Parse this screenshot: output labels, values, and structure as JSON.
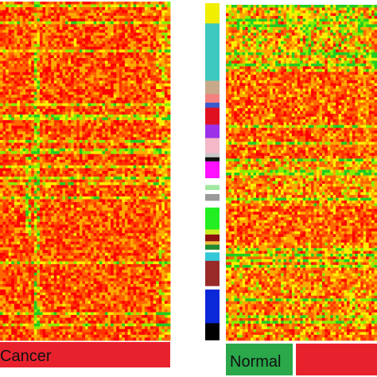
{
  "chart_data": [
    {
      "type": "heatmap",
      "name": "left-heatmap",
      "colormap": [
        "#ff0000",
        "#ff3300",
        "#ff6600",
        "#ffaa00",
        "#ffee00",
        "#88ee00",
        "#22cc22"
      ],
      "column_groups": [
        {
          "label": "Cancer",
          "color": "#e8222d"
        }
      ]
    },
    {
      "type": "heatmap",
      "name": "right-heatmap",
      "colormap": [
        "#ff0000",
        "#ff3300",
        "#ff6600",
        "#ffaa00",
        "#ffee00",
        "#88ee00",
        "#22cc22"
      ],
      "column_groups": [
        {
          "label": "Normal",
          "color": "#2aa84a"
        },
        {
          "label": "",
          "color": "#e8222d"
        }
      ]
    }
  ],
  "row_clusters": [
    {
      "color": "#f2ee00",
      "fraction": 0.06
    },
    {
      "color": "#3ec9c0",
      "fraction": 0.17
    },
    {
      "color": "#c8a98a",
      "fraction": 0.04
    },
    {
      "color": "#f48080",
      "fraction": 0.025
    },
    {
      "color": "#3b5bd0",
      "fraction": 0.015
    },
    {
      "color": "#e01020",
      "fraction": 0.05
    },
    {
      "color": "#9b30e8",
      "fraction": 0.04
    },
    {
      "color": "#f5b8c8",
      "fraction": 0.045
    },
    {
      "color": "#c8c8c8",
      "fraction": 0.012
    },
    {
      "color": "#101010",
      "fraction": 0.012
    },
    {
      "color": "#ff10ff",
      "fraction": 0.05
    },
    {
      "color": "#ffffff",
      "fraction": 0.02
    },
    {
      "color": "#a0e8a0",
      "fraction": 0.015
    },
    {
      "color": "#ffffff",
      "fraction": 0.012
    },
    {
      "color": "#9a9a9a",
      "fraction": 0.02
    },
    {
      "color": "#ffffff",
      "fraction": 0.02
    },
    {
      "color": "#22ee22",
      "fraction": 0.065
    },
    {
      "color": "#c8f020",
      "fraction": 0.015
    },
    {
      "color": "#8b1010",
      "fraction": 0.02
    },
    {
      "color": "#f0c040",
      "fraction": 0.01
    },
    {
      "color": "#208a30",
      "fraction": 0.015
    },
    {
      "color": "#ffffff",
      "fraction": 0.008
    },
    {
      "color": "#32c8d8",
      "fraction": 0.025
    },
    {
      "color": "#9a2a2a",
      "fraction": 0.075
    },
    {
      "color": "#ffffff",
      "fraction": 0.01
    },
    {
      "color": "#0a28d8",
      "fraction": 0.1
    },
    {
      "color": "#000000",
      "fraction": 0.05
    }
  ]
}
